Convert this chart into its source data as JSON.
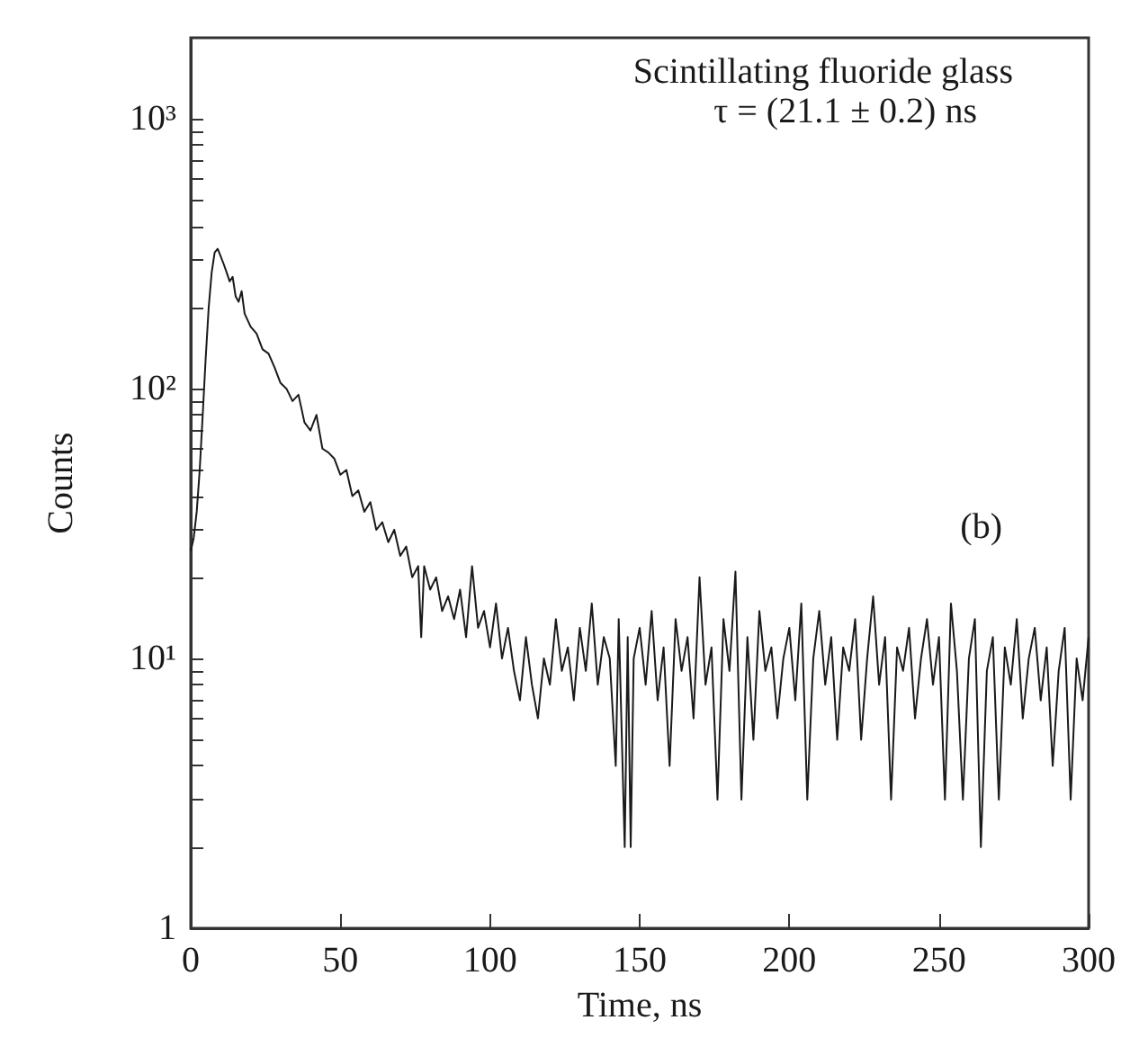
{
  "chart_data": {
    "type": "line",
    "xlabel": "Time, ns",
    "ylabel": "Counts",
    "log": true,
    "color": "#1a1a1a",
    "xlim": [
      0,
      300
    ],
    "xticks": [
      0,
      50,
      100,
      150,
      200,
      250,
      300
    ],
    "ylim": [
      1,
      2000
    ],
    "yticks": [
      {
        "value": 1,
        "label": "1"
      },
      {
        "value": 2,
        "label": null
      },
      {
        "value": 3,
        "label": null
      },
      {
        "value": 4,
        "label": null
      },
      {
        "value": 5,
        "label": null
      },
      {
        "value": 6,
        "label": null
      },
      {
        "value": 7,
        "label": null
      },
      {
        "value": 8,
        "label": null
      },
      {
        "value": 9,
        "label": null
      },
      {
        "value": 10,
        "label": "10¹"
      },
      {
        "value": 20,
        "label": null
      },
      {
        "value": 30,
        "label": null
      },
      {
        "value": 40,
        "label": null
      },
      {
        "value": 50,
        "label": null
      },
      {
        "value": 60,
        "label": null
      },
      {
        "value": 70,
        "label": null
      },
      {
        "value": 80,
        "label": null
      },
      {
        "value": 90,
        "label": null
      },
      {
        "value": 100,
        "label": "10²"
      },
      {
        "value": 200,
        "label": null
      },
      {
        "value": 300,
        "label": null
      },
      {
        "value": 400,
        "label": null
      },
      {
        "value": 500,
        "label": null
      },
      {
        "value": 600,
        "label": null
      },
      {
        "value": 700,
        "label": null
      },
      {
        "value": 800,
        "label": null
      },
      {
        "value": 900,
        "label": null
      },
      {
        "value": 1000,
        "label": "10³"
      }
    ],
    "annotations": [
      "Scintillating fluoride glass",
      "τ = (21.1 ± 0.2) ns",
      "(b)"
    ],
    "x": [
      0,
      1,
      2,
      3,
      4,
      5,
      6,
      7,
      8,
      9,
      10,
      11,
      12,
      13,
      14,
      15,
      16,
      17,
      18,
      20,
      22,
      24,
      26,
      28,
      30,
      32,
      34,
      36,
      38,
      40,
      42,
      44,
      46,
      48,
      50,
      52,
      54,
      56,
      58,
      60,
      62,
      64,
      66,
      68,
      70,
      72,
      74,
      76,
      77,
      78,
      80,
      82,
      84,
      86,
      88,
      90,
      92,
      94,
      96,
      98,
      100,
      102,
      104,
      106,
      108,
      110,
      112,
      114,
      116,
      118,
      120,
      122,
      124,
      126,
      128,
      130,
      132,
      134,
      136,
      138,
      140,
      142,
      143,
      145,
      146,
      147,
      148,
      150,
      152,
      154,
      156,
      158,
      160,
      162,
      164,
      166,
      168,
      170,
      172,
      174,
      176,
      178,
      180,
      182,
      184,
      186,
      188,
      190,
      192,
      194,
      196,
      198,
      200,
      202,
      204,
      206,
      208,
      210,
      212,
      214,
      216,
      218,
      220,
      222,
      224,
      226,
      228,
      230,
      232,
      234,
      236,
      238,
      240,
      242,
      244,
      246,
      248,
      250,
      252,
      254,
      256,
      258,
      260,
      262,
      264,
      266,
      268,
      270,
      272,
      274,
      276,
      278,
      280,
      282,
      284,
      286,
      288,
      290,
      292,
      294,
      296,
      298,
      300
    ],
    "values": [
      25,
      28,
      35,
      50,
      80,
      130,
      200,
      270,
      320,
      330,
      310,
      290,
      270,
      250,
      260,
      220,
      210,
      230,
      190,
      170,
      160,
      140,
      135,
      120,
      105,
      100,
      90,
      95,
      75,
      70,
      80,
      60,
      58,
      55,
      48,
      50,
      40,
      42,
      35,
      38,
      30,
      32,
      27,
      30,
      24,
      26,
      20,
      22,
      12,
      22,
      18,
      20,
      15,
      17,
      14,
      18,
      12,
      22,
      13,
      15,
      11,
      16,
      10,
      13,
      9,
      7,
      12,
      8,
      6,
      10,
      8,
      14,
      9,
      11,
      7,
      13,
      9,
      16,
      8,
      12,
      10,
      4,
      14,
      2,
      12,
      2,
      10,
      13,
      8,
      15,
      7,
      11,
      4,
      14,
      9,
      12,
      6,
      20,
      8,
      11,
      3,
      14,
      9,
      21,
      3,
      12,
      5,
      15,
      9,
      11,
      6,
      10,
      13,
      7,
      16,
      3,
      10,
      15,
      8,
      12,
      5,
      11,
      9,
      14,
      5,
      10,
      17,
      8,
      12,
      3,
      11,
      9,
      13,
      6,
      10,
      14,
      8,
      12,
      3,
      16,
      9,
      3,
      10,
      14,
      2,
      9,
      12,
      3,
      11,
      8,
      14,
      6,
      10,
      13,
      7,
      11,
      4,
      9,
      13,
      3,
      10,
      7,
      12
    ]
  }
}
